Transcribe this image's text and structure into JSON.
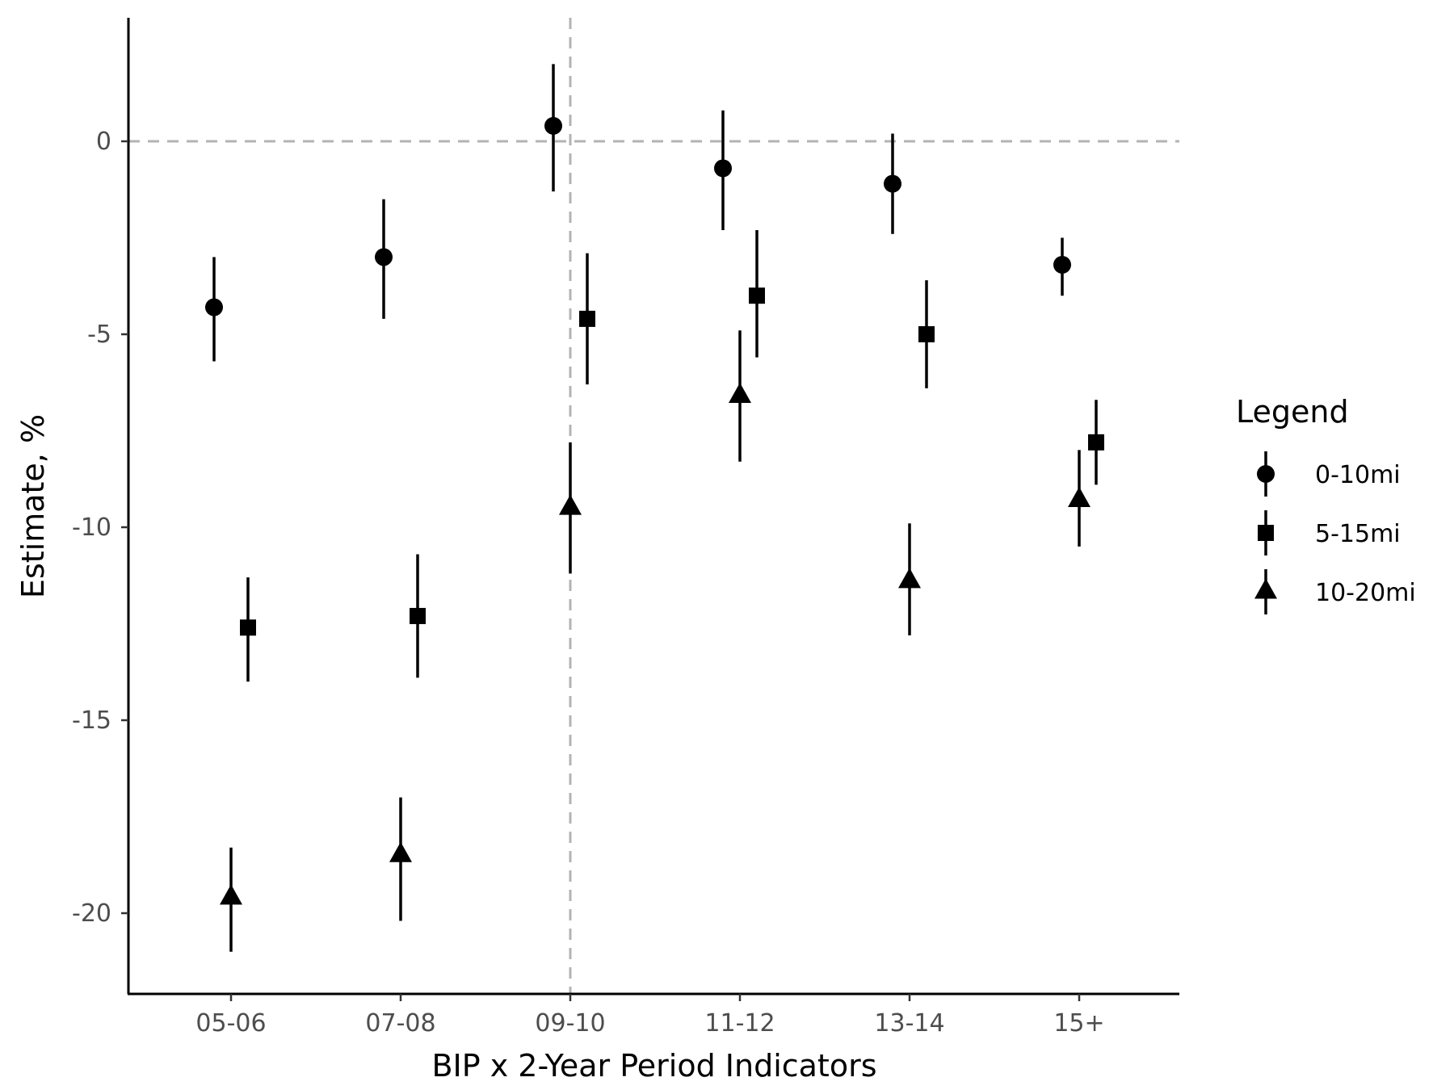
{
  "chart_data": {
    "type": "scatter",
    "title": "",
    "xlabel": "BIP x 2-Year Period Indicators",
    "ylabel": "Estimate, %",
    "categories": [
      "05-06",
      "07-08",
      "09-10",
      "11-12",
      "13-14",
      "15+"
    ],
    "yticks": [
      "0",
      "-5",
      "-10",
      "-15",
      "-20"
    ],
    "ylim": [
      -22.1,
      3.2
    ],
    "reference_lines": {
      "horizontal_y": 0,
      "vertical_category": "09-10"
    },
    "grid": false,
    "legend": {
      "title": "Legend",
      "placement": "right"
    },
    "series": [
      {
        "name": "0-10mi",
        "marker": "circle",
        "estimate": [
          -4.3,
          -3.0,
          0.4,
          -0.7,
          -1.1,
          -3.2
        ],
        "ci_low": [
          -5.7,
          -4.6,
          -1.3,
          -2.3,
          -2.4,
          -4.0
        ],
        "ci_high": [
          -3.0,
          -1.5,
          2.0,
          0.8,
          0.2,
          -2.5
        ]
      },
      {
        "name": "5-15mi",
        "marker": "square",
        "estimate": [
          -12.6,
          -12.3,
          -4.6,
          -4.0,
          -5.0,
          -7.8
        ],
        "ci_low": [
          -14.0,
          -13.9,
          -6.3,
          -5.6,
          -6.4,
          -8.9
        ],
        "ci_high": [
          -11.3,
          -10.7,
          -2.9,
          -2.3,
          -3.6,
          -6.7
        ]
      },
      {
        "name": "10-20mi",
        "marker": "triangle",
        "estimate": [
          -19.6,
          -18.5,
          -9.5,
          -6.6,
          -11.4,
          -9.3
        ],
        "ci_low": [
          -21.0,
          -20.2,
          -11.2,
          -8.3,
          -12.8,
          -10.5
        ],
        "ci_high": [
          -18.3,
          -17.0,
          -7.8,
          -4.9,
          -9.9,
          -8.0
        ]
      }
    ]
  }
}
